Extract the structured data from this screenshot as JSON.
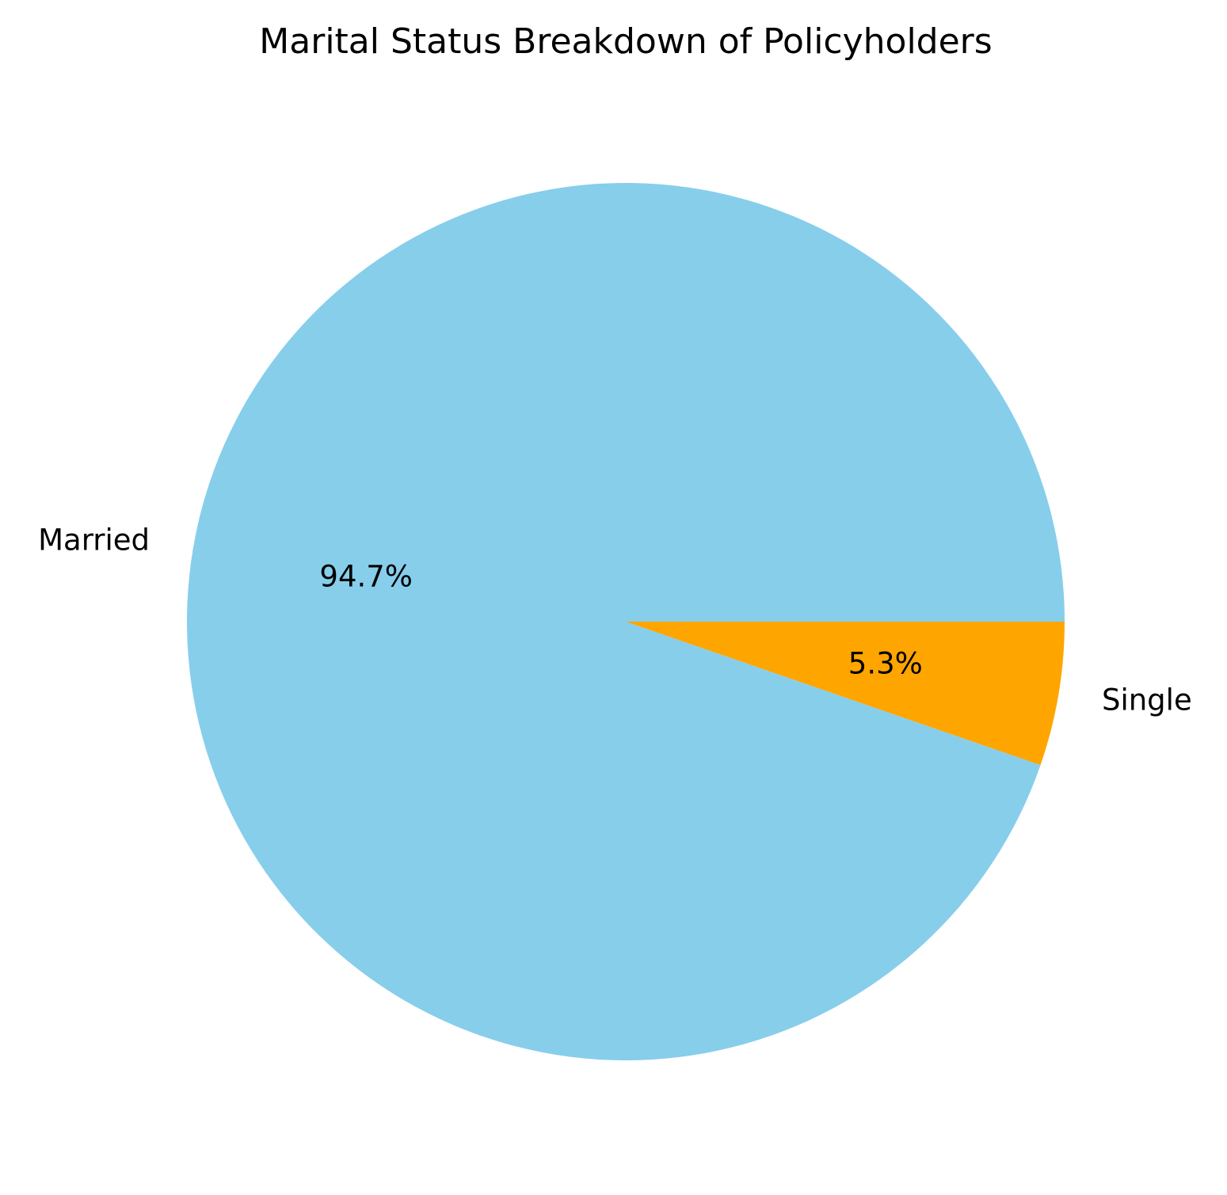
{
  "chart_data": {
    "type": "pie",
    "title": "Marital Status Breakdown of Policyholders",
    "slices": [
      {
        "label": "Married",
        "value": 94.7,
        "pct_label": "94.7%",
        "color": "#87CEEB"
      },
      {
        "label": "Single",
        "value": 5.3,
        "pct_label": "5.3%",
        "color": "#FFA500"
      }
    ],
    "start_angle_deg": 0,
    "direction": "counterclockwise",
    "legend": "none"
  }
}
